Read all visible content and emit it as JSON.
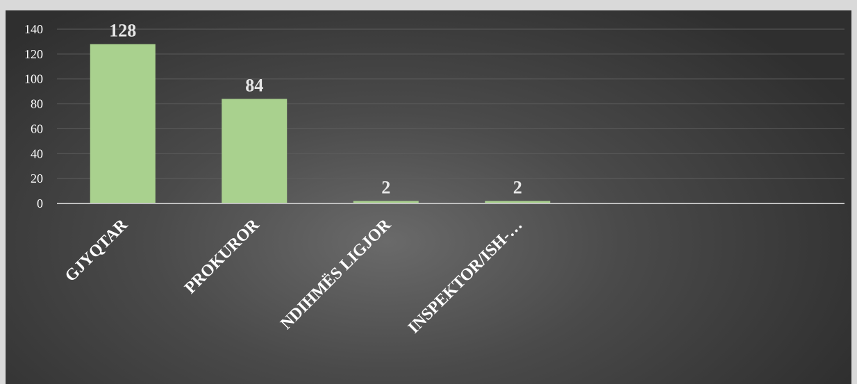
{
  "chart_data": {
    "type": "bar",
    "title": "",
    "xlabel": "",
    "ylabel": "",
    "categories": [
      "GJYQTAR",
      "PROKUROR",
      "NDIHMËS LIGJOR",
      "INSPEKTOR/ISH-…"
    ],
    "values": [
      128,
      84,
      2,
      2
    ],
    "data_labels": [
      "128",
      "84",
      "2",
      "2"
    ],
    "y_ticks": [
      "0",
      "20",
      "40",
      "60",
      "80",
      "100",
      "120",
      "140"
    ],
    "ylim": [
      0,
      140
    ],
    "grid": true,
    "legend": "none",
    "colors": {
      "bar": "#a9d18e",
      "gridline": "#5e5e5e",
      "axis": "#bfbfbf",
      "text": "#ffffff",
      "data_label": "#e8e8e8"
    }
  }
}
